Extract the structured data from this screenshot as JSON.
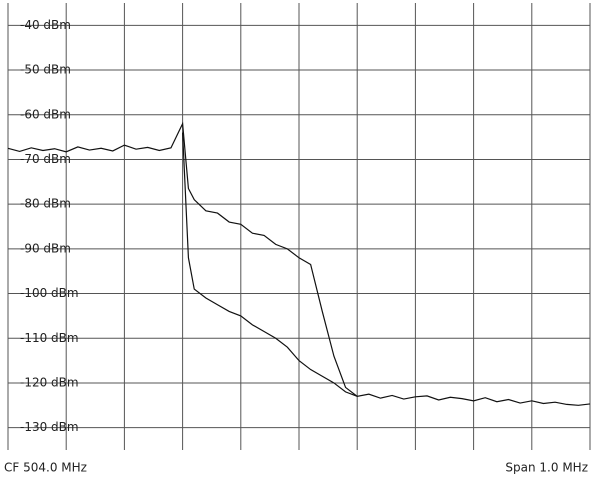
{
  "chart_data": {
    "type": "line",
    "center_label": "CF 504.0 MHz",
    "span_label": "Span 1.0 MHz",
    "x": [
      503.5,
      503.52,
      503.54,
      503.56,
      503.58,
      503.6,
      503.62,
      503.64,
      503.66,
      503.68,
      503.7,
      503.72,
      503.74,
      503.76,
      503.78,
      503.8,
      503.81,
      503.82,
      503.84,
      503.86,
      503.88,
      503.9,
      503.92,
      503.94,
      503.96,
      503.98,
      504.0,
      504.02,
      504.04,
      504.06,
      504.08,
      504.1,
      504.12,
      504.14,
      504.16,
      504.18,
      504.2,
      504.22,
      504.24,
      504.26,
      504.28,
      504.3,
      504.32,
      504.34,
      504.36,
      504.38,
      504.4,
      504.42,
      504.44,
      504.46,
      504.48,
      504.5
    ],
    "series": [
      {
        "color": "#111111",
        "values": [
          -67.5,
          -68.2,
          -67.4,
          -68.0,
          -67.6,
          -68.3,
          -67.2,
          -67.9,
          -67.5,
          -68.1,
          -66.8,
          -67.7,
          -67.3,
          -68.0,
          -67.4,
          -62.0,
          -76.5,
          -79.0,
          -81.5,
          -82.0,
          -84.0,
          -84.5,
          -86.5,
          -87.0,
          -89.0,
          -90.0,
          -92.0,
          -93.5,
          -104.0,
          -114.0,
          -121.0,
          -123.0,
          -122.5,
          -123.4,
          -122.8,
          -123.6,
          -123.1,
          -122.9,
          -123.8,
          -123.2,
          -123.5,
          -124.0,
          -123.3,
          -124.2,
          -123.7,
          -124.5,
          -124.0,
          -124.6,
          -124.3,
          -124.8,
          -125.0,
          -124.7
        ]
      },
      {
        "color": "#111111",
        "values": [
          null,
          null,
          null,
          null,
          null,
          null,
          null,
          null,
          null,
          null,
          null,
          null,
          null,
          null,
          null,
          -64.0,
          -92.0,
          -99.0,
          -101.0,
          -102.5,
          -104.0,
          -105.0,
          -107.0,
          -108.5,
          -110.0,
          -112.0,
          -115.0,
          -117.0,
          -118.5,
          -120.0,
          -122.0,
          -123.0,
          null,
          null,
          null,
          null,
          null,
          null,
          null,
          null,
          null,
          null,
          null,
          null,
          null,
          null,
          null,
          null,
          null,
          null,
          null,
          null
        ]
      }
    ],
    "xlim": [
      503.5,
      504.5
    ],
    "xticks": [
      503.5,
      503.6,
      503.7,
      503.8,
      503.9,
      504.0,
      504.1,
      504.2,
      504.3,
      504.4,
      504.5
    ],
    "ylim": [
      -135,
      -35
    ],
    "yticks": [
      {
        "value": -40,
        "label": "-40 dBm"
      },
      {
        "value": -50,
        "label": "-50 dBm"
      },
      {
        "value": -60,
        "label": "-60 dBm"
      },
      {
        "value": -70,
        "label": "-70 dBm"
      },
      {
        "value": -80,
        "label": "-80 dBm"
      },
      {
        "value": -90,
        "label": "-90 dBm"
      },
      {
        "value": -100,
        "label": "-100 dBm"
      },
      {
        "value": -110,
        "label": "-110 dBm"
      },
      {
        "value": -120,
        "label": "-120 dBm"
      },
      {
        "value": -130,
        "label": "-130 dBm"
      }
    ],
    "grid": true
  }
}
